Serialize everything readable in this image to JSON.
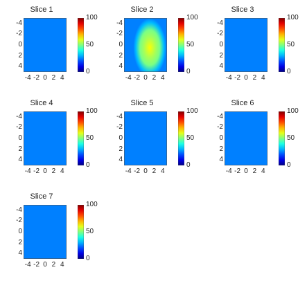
{
  "colormap": {
    "name": "jet",
    "low": "#0000ff",
    "mid": "#80ff80",
    "high": "#800000",
    "background_value": 25,
    "background_color": "#3a86f0"
  },
  "chart_data": [
    {
      "type": "heatmap",
      "title": "Slice 1",
      "x_ticks": [
        "-4",
        "-2",
        "0",
        "2",
        "4"
      ],
      "y_ticks": [
        "-4",
        "-2",
        "0",
        "2",
        "4"
      ],
      "xlim": [
        -5,
        5
      ],
      "ylim": [
        -5,
        5
      ],
      "clim": [
        0,
        100
      ],
      "colorbar_ticks": [
        "100",
        "50",
        "0"
      ],
      "background_value": 25,
      "blobs": []
    },
    {
      "type": "heatmap",
      "title": "Slice 2",
      "x_ticks": [
        "-4",
        "-2",
        "0",
        "2",
        "4"
      ],
      "y_ticks": [
        "-4",
        "-2",
        "0",
        "2",
        "4"
      ],
      "xlim": [
        -5,
        5
      ],
      "ylim": [
        -5,
        5
      ],
      "clim": [
        0,
        100
      ],
      "colorbar_ticks": [
        "100",
        "50",
        "0"
      ],
      "background_value": 25,
      "blobs": [
        {
          "cx": 1,
          "cy": 0.5,
          "sx": 2.4,
          "sy": 3.4,
          "peak": 62
        }
      ]
    },
    {
      "type": "heatmap",
      "title": "Slice 3",
      "x_ticks": [
        "-4",
        "-2",
        "0",
        "2",
        "4"
      ],
      "y_ticks": [
        "-4",
        "-2",
        "0",
        "2",
        "4"
      ],
      "xlim": [
        -5,
        5
      ],
      "ylim": [
        -5,
        5
      ],
      "clim": [
        0,
        100
      ],
      "colorbar_ticks": [
        "100",
        "50",
        "0"
      ],
      "background_value": 25,
      "blobs": []
    },
    {
      "type": "heatmap",
      "title": "Slice 4",
      "x_ticks": [
        "-4",
        "-2",
        "0",
        "2",
        "4"
      ],
      "y_ticks": [
        "-4",
        "-2",
        "0",
        "2",
        "4"
      ],
      "xlim": [
        -5,
        5
      ],
      "ylim": [
        -5,
        5
      ],
      "clim": [
        0,
        100
      ],
      "colorbar_ticks": [
        "100",
        "50",
        "0"
      ],
      "background_value": 25,
      "blobs": []
    },
    {
      "type": "heatmap",
      "title": "Slice 5",
      "x_ticks": [
        "-4",
        "-2",
        "0",
        "2",
        "4"
      ],
      "y_ticks": [
        "-4",
        "-2",
        "0",
        "2",
        "4"
      ],
      "xlim": [
        -5,
        5
      ],
      "ylim": [
        -5,
        5
      ],
      "clim": [
        0,
        100
      ],
      "colorbar_ticks": [
        "100",
        "50",
        "0"
      ],
      "background_value": 25,
      "blobs": []
    },
    {
      "type": "heatmap",
      "title": "Slice 6",
      "x_ticks": [
        "-4",
        "-2",
        "0",
        "2",
        "4"
      ],
      "y_ticks": [
        "-4",
        "-2",
        "0",
        "2",
        "4"
      ],
      "xlim": [
        -5,
        5
      ],
      "ylim": [
        -5,
        5
      ],
      "clim": [
        0,
        100
      ],
      "colorbar_ticks": [
        "100",
        "50",
        "0"
      ],
      "background_value": 25,
      "blobs": []
    },
    {
      "type": "heatmap",
      "title": "Slice 7",
      "x_ticks": [
        "-4",
        "-2",
        "0",
        "2",
        "4"
      ],
      "y_ticks": [
        "-4",
        "-2",
        "0",
        "2",
        "4"
      ],
      "xlim": [
        -5,
        5
      ],
      "ylim": [
        -5,
        5
      ],
      "clim": [
        0,
        100
      ],
      "colorbar_ticks": [
        "100",
        "50",
        "0"
      ],
      "background_value": 25,
      "blobs": []
    }
  ]
}
